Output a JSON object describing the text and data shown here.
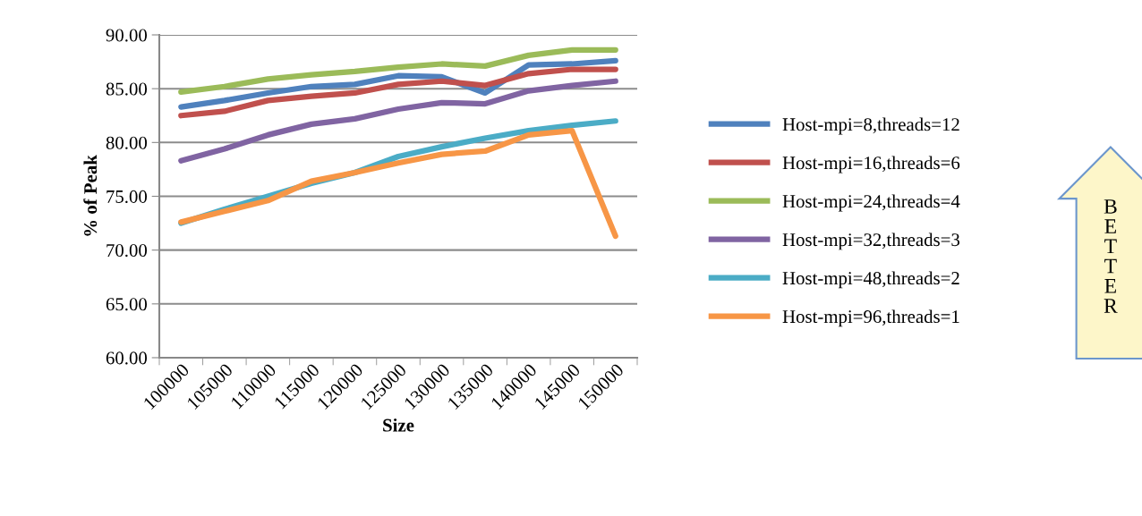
{
  "chart_data": {
    "type": "line",
    "xlabel": "Size",
    "ylabel": "% of Peak",
    "categories": [
      "100000",
      "105000",
      "110000",
      "115000",
      "120000",
      "125000",
      "130000",
      "135000",
      "140000",
      "145000",
      "150000"
    ],
    "series": [
      {
        "name": "Host-mpi=8,threads=12",
        "color": "#4f81bd",
        "values": [
          83.3,
          83.9,
          84.6,
          85.2,
          85.4,
          86.2,
          86.1,
          84.6,
          87.2,
          87.3,
          87.6
        ]
      },
      {
        "name": "Host-mpi=16,threads=6",
        "color": "#c0504d",
        "values": [
          82.5,
          82.9,
          83.9,
          84.3,
          84.6,
          85.4,
          85.7,
          85.3,
          86.4,
          86.8,
          86.8
        ]
      },
      {
        "name": "Host-mpi=24,threads=4",
        "color": "#9bbb59",
        "values": [
          84.7,
          85.2,
          85.9,
          86.3,
          86.6,
          87.0,
          87.3,
          87.1,
          88.1,
          88.6,
          88.6
        ]
      },
      {
        "name": "Host-mpi=32,threads=3",
        "color": "#8064a2",
        "values": [
          78.3,
          79.4,
          80.7,
          81.7,
          82.2,
          83.1,
          83.7,
          83.6,
          84.8,
          85.3,
          85.7
        ]
      },
      {
        "name": "Host-mpi=48,threads=2",
        "color": "#4bacc6",
        "values": [
          72.5,
          73.8,
          75.0,
          76.2,
          77.2,
          78.7,
          79.6,
          80.4,
          81.1,
          81.6,
          82.0
        ]
      },
      {
        "name": "Host-mpi=96,threads=1",
        "color": "#f79646",
        "values": [
          72.6,
          73.6,
          74.6,
          76.4,
          77.2,
          78.1,
          78.9,
          79.2,
          80.7,
          81.1,
          71.3
        ]
      }
    ],
    "ylim": [
      60,
      90
    ],
    "yticks": [
      {
        "value": 60,
        "label": "60.00"
      },
      {
        "value": 65,
        "label": "65.00"
      },
      {
        "value": 70,
        "label": "70.00"
      },
      {
        "value": 75,
        "label": "75.00"
      },
      {
        "value": 80,
        "label": "80.00"
      },
      {
        "value": 85,
        "label": "85.00"
      },
      {
        "value": 90,
        "label": "90.00"
      }
    ],
    "grid": "y",
    "legend": "right",
    "marker": "none",
    "line_style": "solid",
    "annotations": [
      "BETTER"
    ]
  }
}
